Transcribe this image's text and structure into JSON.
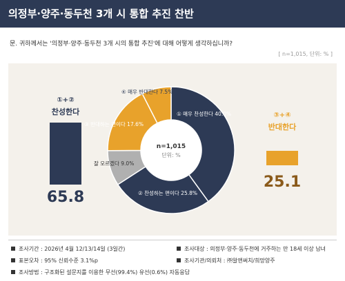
{
  "header": {
    "title": "의정부·양주·동두천 3개 시 통합 추진 찬반"
  },
  "question": "문. 귀하께서는 '의정부·양주·동두천 3개 시의 통합 추진'에 대해 어떻게 생각하십니까?",
  "meta": "[ n=1,015, 단위: % ]",
  "left_group": {
    "top": "①+②",
    "label": "찬성한다",
    "value": "65.8",
    "color": "#2d3a55"
  },
  "right_group": {
    "top": "③+④",
    "label": "반대한다",
    "value": "25.1",
    "color": "#e8a22b"
  },
  "center": {
    "n": "n=1,015",
    "unit": "단위: %"
  },
  "chart_data": {
    "type": "pie",
    "slices": [
      {
        "label": "① 매우 찬성한다 40.0%",
        "value": 40.0,
        "color": "#2d3a55"
      },
      {
        "label": "② 찬성하는 편이다 25.8%",
        "value": 25.8,
        "color": "#2d3a55"
      },
      {
        "label": "잘 모르겠다 9.0%",
        "value": 9.0,
        "color": "#b0b0b0"
      },
      {
        "label": "③ 반대하는 편이다 17.6%",
        "value": 17.6,
        "color": "#e8a22b"
      },
      {
        "label": "④ 매우 반대한다 7.5%",
        "value": 7.5,
        "color": "#e8a22b"
      }
    ],
    "groups": [
      {
        "label": "찬성한다",
        "value": 65.8
      },
      {
        "label": "반대한다",
        "value": 25.1
      }
    ]
  },
  "footer": [
    "조사기간 : 2026년 4월 12/13/14일 (3일간)",
    "조사대상 : 의정부·양주·동두천에 거주하는 만 18세 이상 남녀",
    "표본오차 : 95% 신뢰수준 3.1%p",
    "조사기관/의뢰처 : ㈜알앤써치/희망양주",
    "조사방법 : 구조화된 설문지를 이용한 무선(99.4%) 유선(0.6%) 자동응답"
  ]
}
